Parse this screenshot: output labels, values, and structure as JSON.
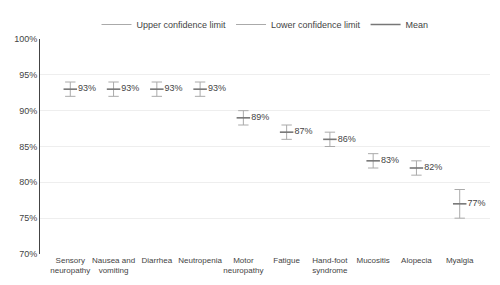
{
  "chart_data": {
    "type": "interval",
    "categories": [
      "Sensory\nneuropathy",
      "Nausea and\nvomiting",
      "Diarrhea",
      "Neutropenia",
      "Motor\nneuropathy",
      "Fatigue",
      "Hand-foot\nsyndrome",
      "Mucositis",
      "Alopecia",
      "Myalgia"
    ],
    "series": [
      {
        "name": "Upper confidence limit",
        "color": "#aaaaaa",
        "values": [
          94,
          94,
          94,
          94,
          90,
          88,
          87,
          84,
          83,
          79
        ]
      },
      {
        "name": "Lower confidence limit",
        "color": "#aaaaaa",
        "values": [
          92,
          92,
          92,
          92,
          88,
          86,
          85,
          82,
          81,
          75
        ]
      },
      {
        "name": "Mean",
        "color": "#777777",
        "values": [
          93,
          93,
          93,
          93,
          89,
          87,
          86,
          83,
          82,
          77
        ],
        "value_labels": [
          "93%",
          "93%",
          "93%",
          "93%",
          "89%",
          "87%",
          "86%",
          "83%",
          "82%",
          "77%"
        ]
      }
    ],
    "data_labels": true,
    "ylim": [
      70,
      100
    ],
    "yticks": [
      {
        "value": 70,
        "label": "70%"
      },
      {
        "value": 75,
        "label": "75%"
      },
      {
        "value": 80,
        "label": "80%"
      },
      {
        "value": 85,
        "label": "85%"
      },
      {
        "value": 90,
        "label": "90%"
      },
      {
        "value": 95,
        "label": "95%"
      },
      {
        "value": 100,
        "label": "100%"
      }
    ],
    "grid": true,
    "legend": "top"
  }
}
